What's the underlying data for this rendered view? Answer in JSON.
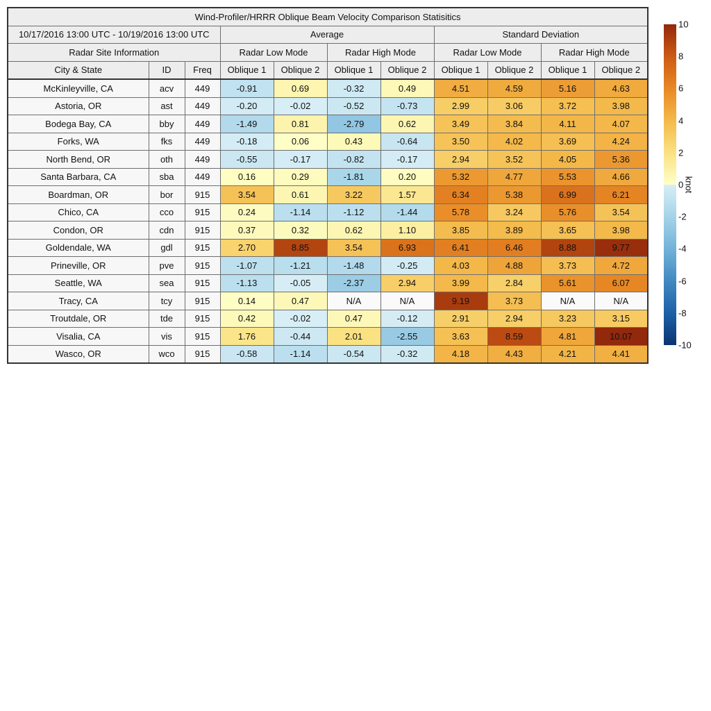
{
  "figure": {
    "title": "Wind-Profiler/HRRR Oblique Beam Velocity Comparison Statisitics"
  },
  "header": {
    "date_range": "10/17/2016 13:00 UTC - 10/19/2016 13:00 UTC",
    "group_average": "Average",
    "group_std": "Standard Deviation",
    "radar_site_info": "Radar Site Information",
    "low_mode": "Radar Low Mode",
    "high_mode": "Radar High Mode",
    "city_state": "City & State",
    "id": "ID",
    "freq": "Freq",
    "oblique1": "Oblique 1",
    "oblique2": "Oblique 2",
    "na_text": "N/A"
  },
  "colorbar": {
    "label": "knot",
    "min": -10,
    "max": 10,
    "ticks": [
      10,
      8,
      6,
      4,
      2,
      0,
      -2,
      -4,
      -6,
      -8,
      -10
    ],
    "positive_stops": [
      "#feffc8",
      "#fae182",
      "#f4b94a",
      "#e88925",
      "#cc5a14",
      "#92280c"
    ],
    "negative_stops": [
      "#d8eef6",
      "#a5d3e8",
      "#74b2d8",
      "#4189c2",
      "#1d60a7",
      "#0b3470"
    ],
    "na_color": "#fafafa"
  },
  "chart_data": {
    "type": "heatmap",
    "title": "Wind-Profiler/HRRR Oblique Beam Velocity Comparison Statisitics",
    "period": "10/17/2016 13:00 UTC - 10/19/2016 13:00 UTC",
    "value_unit": "knot",
    "value_range": [
      -10,
      10
    ],
    "value_columns": [
      {
        "group": "Average",
        "mode": "Radar Low Mode",
        "beam": "Oblique 1"
      },
      {
        "group": "Average",
        "mode": "Radar Low Mode",
        "beam": "Oblique 2"
      },
      {
        "group": "Average",
        "mode": "Radar High Mode",
        "beam": "Oblique 1"
      },
      {
        "group": "Average",
        "mode": "Radar High Mode",
        "beam": "Oblique 2"
      },
      {
        "group": "Standard Deviation",
        "mode": "Radar Low Mode",
        "beam": "Oblique 1"
      },
      {
        "group": "Standard Deviation",
        "mode": "Radar Low Mode",
        "beam": "Oblique 2"
      },
      {
        "group": "Standard Deviation",
        "mode": "Radar High Mode",
        "beam": "Oblique 1"
      },
      {
        "group": "Standard Deviation",
        "mode": "Radar High Mode",
        "beam": "Oblique 2"
      }
    ],
    "rows": [
      {
        "city": "McKinleyville, CA",
        "id": "acv",
        "freq": "449",
        "values": [
          -0.91,
          0.69,
          -0.32,
          0.49,
          4.51,
          4.59,
          5.16,
          4.63
        ]
      },
      {
        "city": "Astoria, OR",
        "id": "ast",
        "freq": "449",
        "values": [
          -0.2,
          -0.02,
          -0.52,
          -0.73,
          2.99,
          3.06,
          3.72,
          3.98
        ]
      },
      {
        "city": "Bodega Bay, CA",
        "id": "bby",
        "freq": "449",
        "values": [
          -1.49,
          0.81,
          -2.79,
          0.62,
          3.49,
          3.84,
          4.11,
          4.07
        ]
      },
      {
        "city": "Forks, WA",
        "id": "fks",
        "freq": "449",
        "values": [
          -0.18,
          0.06,
          0.43,
          -0.64,
          3.5,
          4.02,
          3.69,
          4.24
        ]
      },
      {
        "city": "North Bend, OR",
        "id": "oth",
        "freq": "449",
        "values": [
          -0.55,
          -0.17,
          -0.82,
          -0.17,
          2.94,
          3.52,
          4.05,
          5.36
        ]
      },
      {
        "city": "Santa Barbara, CA",
        "id": "sba",
        "freq": "449",
        "values": [
          0.16,
          0.29,
          -1.81,
          0.2,
          5.32,
          4.77,
          5.53,
          4.66
        ]
      },
      {
        "city": "Boardman, OR",
        "id": "bor",
        "freq": "915",
        "values": [
          3.54,
          0.61,
          3.22,
          1.57,
          6.34,
          5.38,
          6.99,
          6.21
        ]
      },
      {
        "city": "Chico, CA",
        "id": "cco",
        "freq": "915",
        "values": [
          0.24,
          -1.14,
          -1.12,
          -1.44,
          5.78,
          3.24,
          5.76,
          3.54
        ]
      },
      {
        "city": "Condon, OR",
        "id": "cdn",
        "freq": "915",
        "values": [
          0.37,
          0.32,
          0.62,
          1.1,
          3.85,
          3.89,
          3.65,
          3.98
        ]
      },
      {
        "city": "Goldendale, WA",
        "id": "gdl",
        "freq": "915",
        "values": [
          2.7,
          8.85,
          3.54,
          6.93,
          6.41,
          6.46,
          8.88,
          9.77
        ]
      },
      {
        "city": "Prineville, OR",
        "id": "pve",
        "freq": "915",
        "values": [
          -1.07,
          -1.21,
          -1.48,
          -0.25,
          4.03,
          4.88,
          3.73,
          4.72
        ]
      },
      {
        "city": "Seattle, WA",
        "id": "sea",
        "freq": "915",
        "values": [
          -1.13,
          -0.05,
          -2.37,
          2.94,
          3.99,
          2.84,
          5.61,
          6.07
        ]
      },
      {
        "city": "Tracy, CA",
        "id": "tcy",
        "freq": "915",
        "values": [
          0.14,
          0.47,
          null,
          null,
          9.19,
          3.73,
          null,
          null
        ]
      },
      {
        "city": "Troutdale, OR",
        "id": "tde",
        "freq": "915",
        "values": [
          0.42,
          -0.02,
          0.47,
          -0.12,
          2.91,
          2.94,
          3.23,
          3.15
        ]
      },
      {
        "city": "Visalia, CA",
        "id": "vis",
        "freq": "915",
        "values": [
          1.76,
          -0.44,
          2.01,
          -2.55,
          3.63,
          8.59,
          4.81,
          10.07
        ]
      },
      {
        "city": "Wasco, OR",
        "id": "wco",
        "freq": "915",
        "values": [
          -0.58,
          -1.14,
          -0.54,
          -0.32,
          4.18,
          4.43,
          4.21,
          4.41
        ]
      }
    ]
  }
}
